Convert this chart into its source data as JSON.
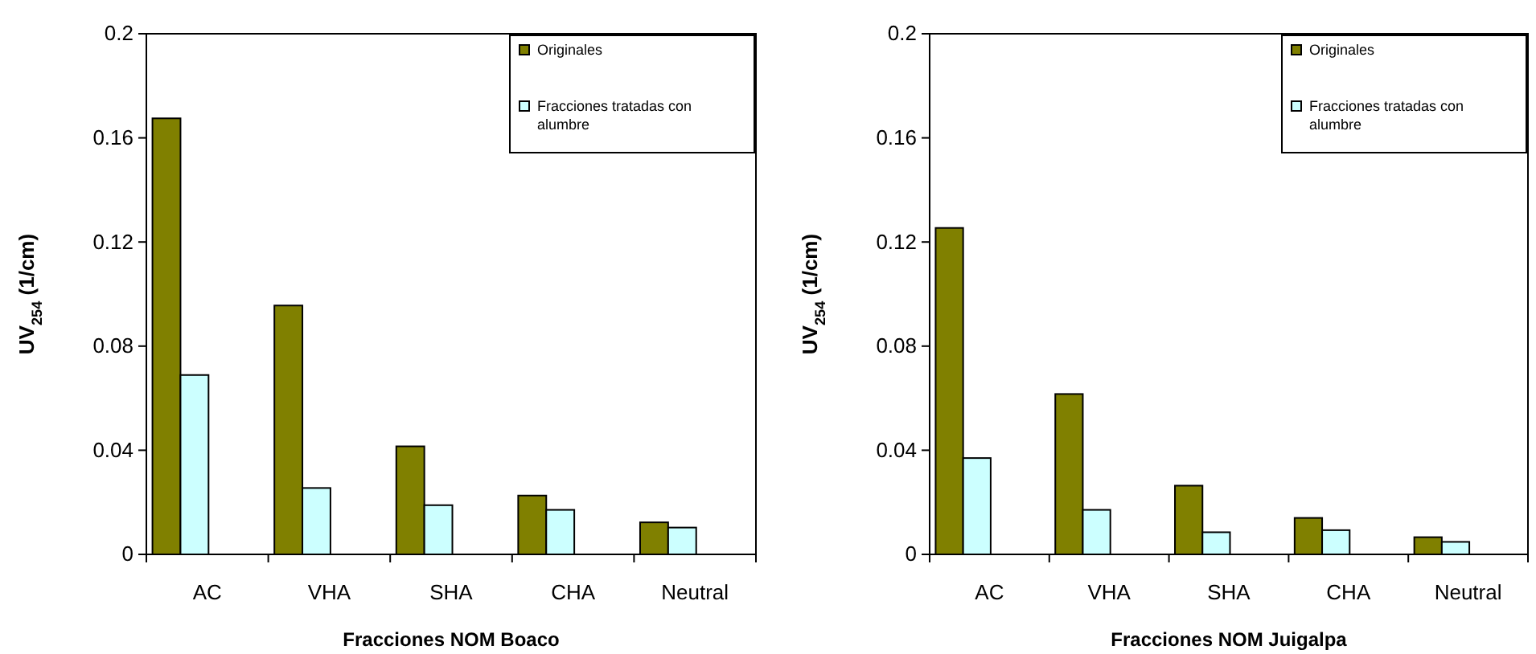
{
  "chart_data": [
    {
      "type": "bar",
      "xlabel": "Fracciones NOM Boaco",
      "ylabel": "UV$_{254}$ (1/cm)",
      "categories": [
        "AC",
        "VHA",
        "SHA",
        "CHA",
        "Neutral"
      ],
      "ylim": [
        0,
        0.2
      ],
      "yticks": [
        0,
        0.04,
        0.08,
        0.12,
        0.16,
        0.2
      ],
      "grid": false,
      "legend": "top right",
      "series": [
        {
          "name": "Originales",
          "color": "#808000",
          "values": [
            0.1675,
            0.0956,
            0.0415,
            0.0226,
            0.0123
          ]
        },
        {
          "name": "Fracciones tratadas con alumbre",
          "color": "#ccffff",
          "values": [
            0.0689,
            0.0255,
            0.0189,
            0.0171,
            0.0103
          ]
        }
      ]
    },
    {
      "type": "bar",
      "xlabel": "Fracciones NOM Juigalpa",
      "ylabel": "UV$_{254}$ (1/cm)",
      "categories": [
        "AC",
        "VHA",
        "SHA",
        "CHA",
        "Neutral"
      ],
      "ylim": [
        0,
        0.2
      ],
      "yticks": [
        0,
        0.04,
        0.08,
        0.12,
        0.16,
        0.2
      ],
      "grid": false,
      "legend": "top right",
      "series": [
        {
          "name": "Originales",
          "color": "#808000",
          "values": [
            0.1254,
            0.0616,
            0.0264,
            0.014,
            0.0066
          ]
        },
        {
          "name": "Fracciones tratadas con alumbre",
          "color": "#ccffff",
          "values": [
            0.037,
            0.0171,
            0.0085,
            0.0093,
            0.0048
          ]
        }
      ]
    }
  ]
}
